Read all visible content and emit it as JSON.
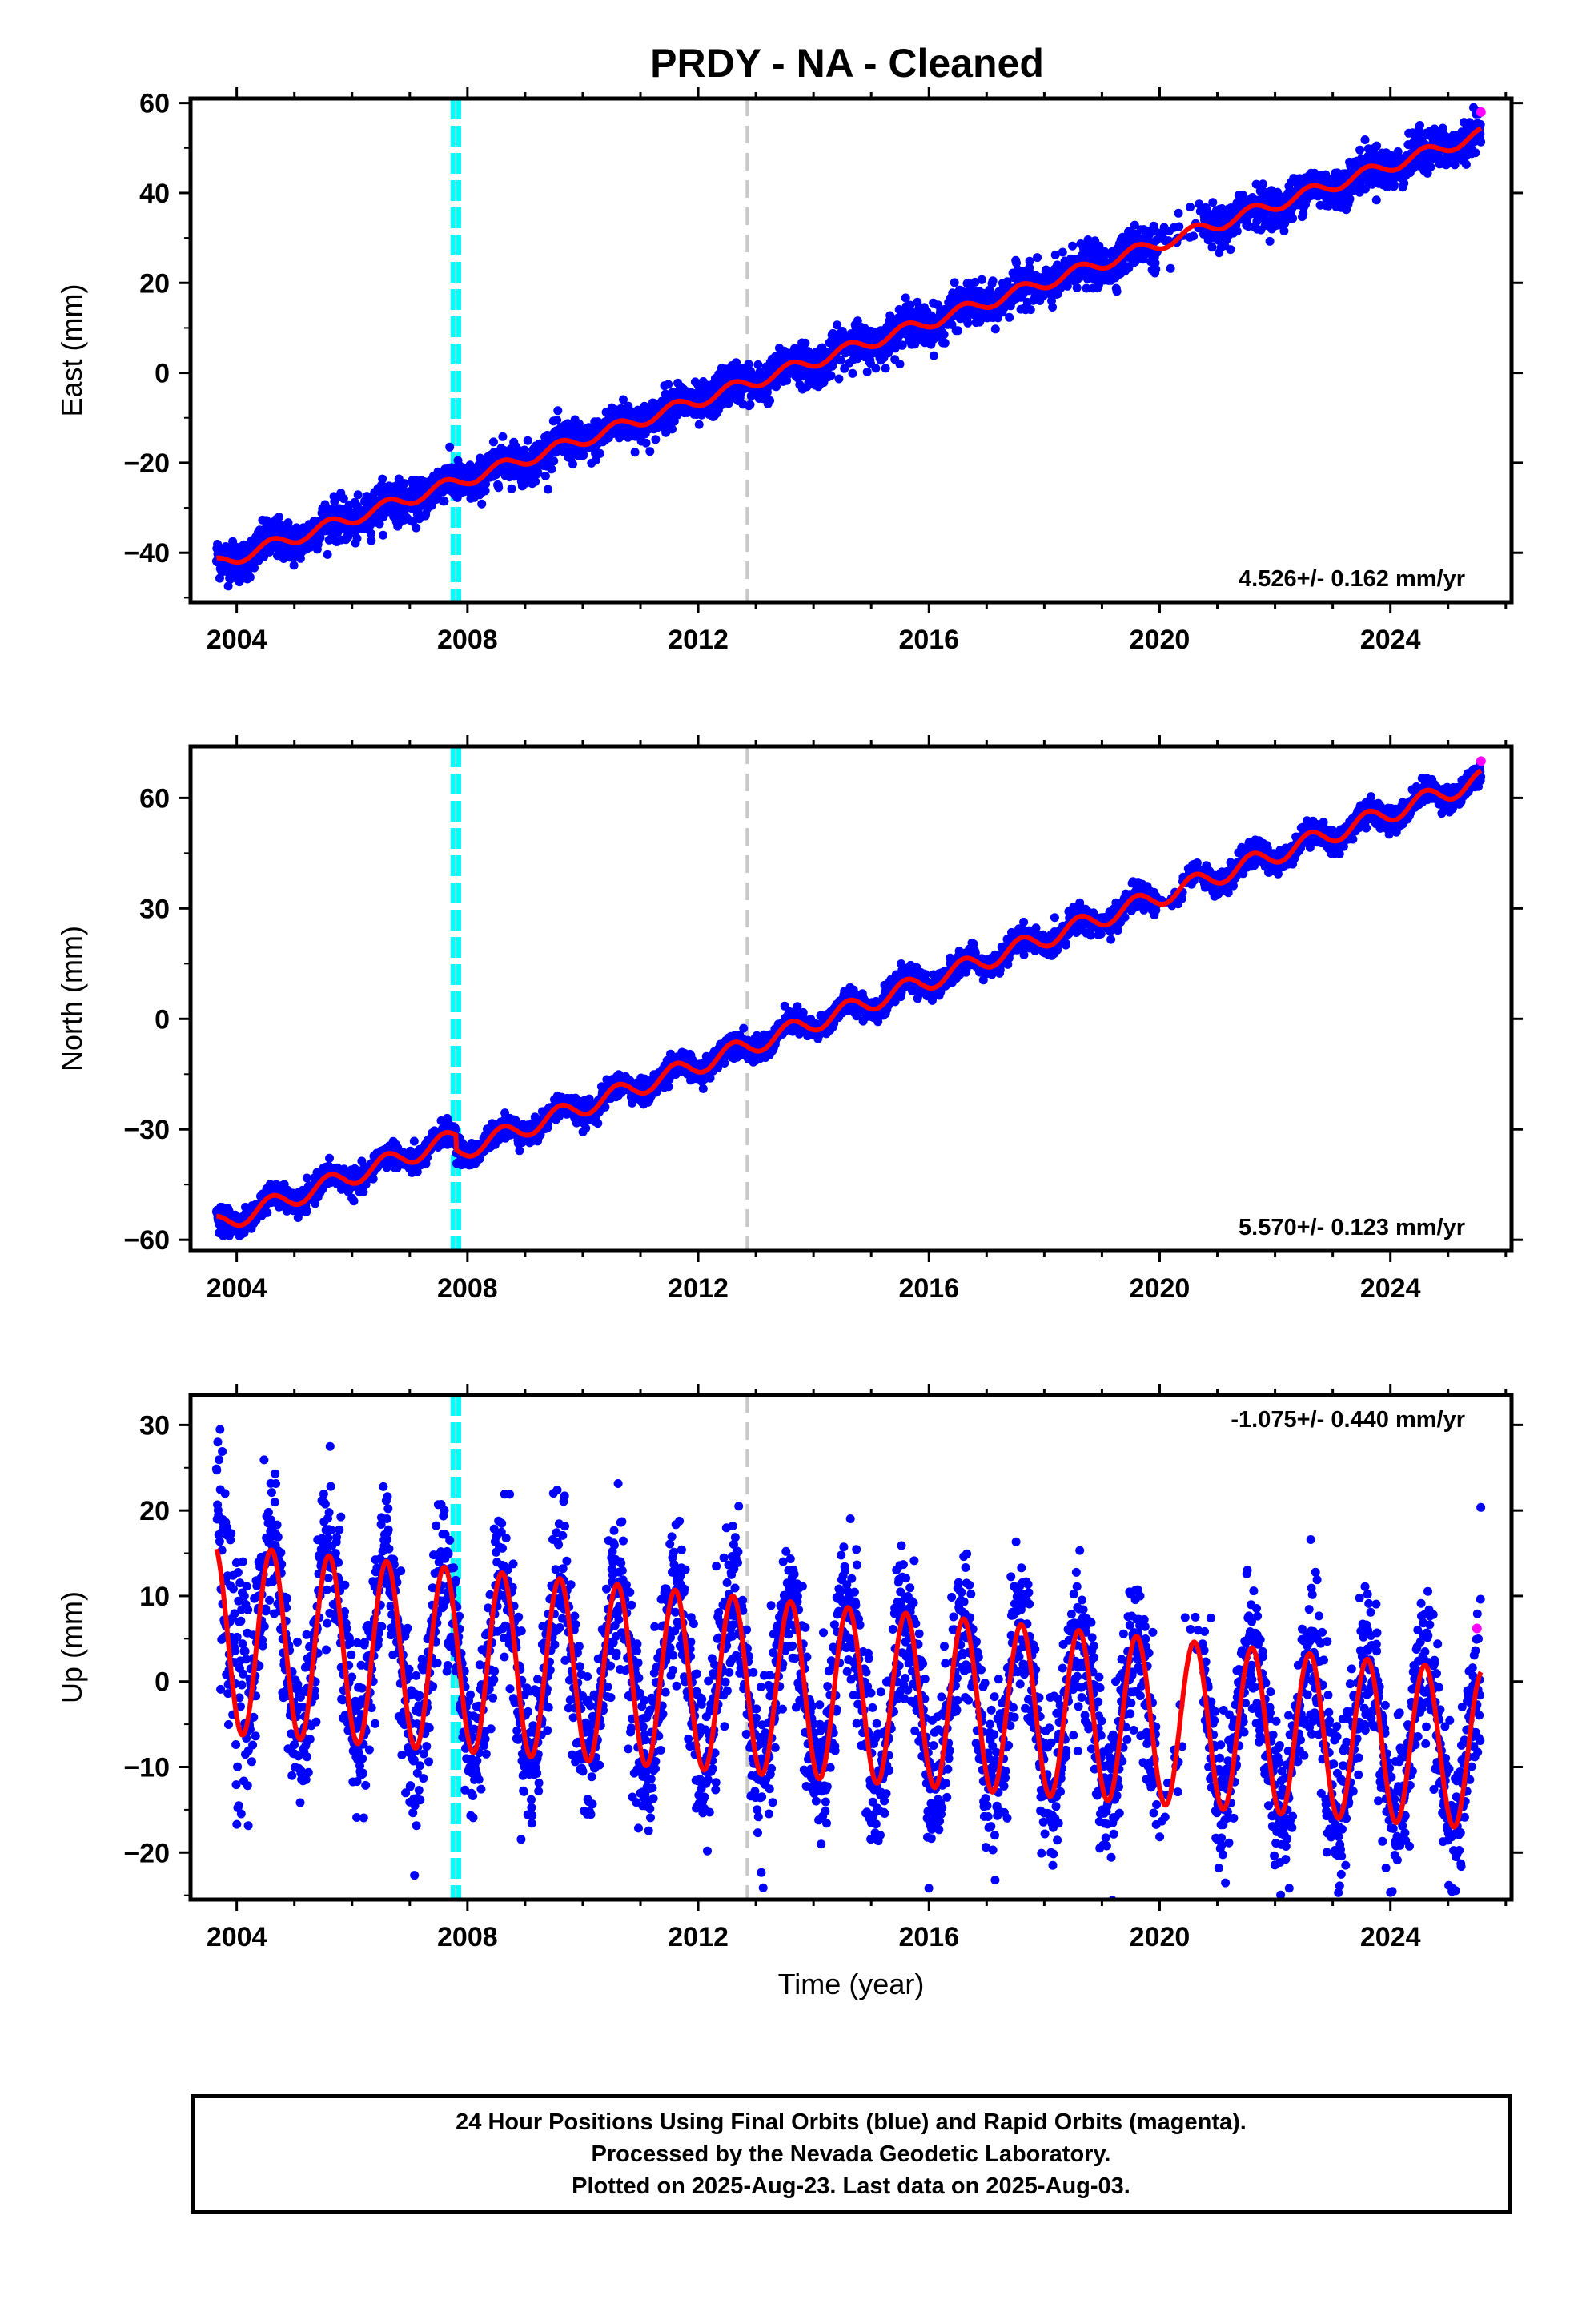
{
  "title": "PRDY  - NA - Cleaned",
  "colors": {
    "final_orbits": "#0000ff",
    "rapid_orbits": "#ff00ff",
    "model": "#ff0000",
    "antenna_change": "#00ffff",
    "earthquake": "#c8c8c8"
  },
  "footer": {
    "line1": "24 Hour Positions Using Final Orbits (blue) and Rapid Orbits (magenta).",
    "line2": "Processed by the Nevada Geodetic Laboratory.",
    "line3": "Plotted on 2025-Aug-23. Last data on 2025-Aug-03."
  },
  "chart_data": [
    {
      "type": "scatter",
      "component": "east",
      "ylabel": "East (mm)",
      "xlabel": "",
      "xlim": [
        2003.2,
        2026.1
      ],
      "ylim": [
        -51,
        61
      ],
      "x_ticks": [
        2004,
        2008,
        2012,
        2016,
        2020,
        2024
      ],
      "y_ticks": [
        -40,
        -20,
        0,
        20,
        40,
        60
      ],
      "y_tick_labels": [
        "−40",
        "−20",
        "0",
        "20",
        "40",
        "60"
      ],
      "rate_label": "4.526+/- 0.162 mm/yr",
      "rate_position": "bottom-right",
      "start_year": 2003.65,
      "end_year": 2025.57,
      "model": {
        "start_value": -42.5,
        "end_value": 53,
        "seasonal_amplitude": 1.4,
        "offset_2007_8": 0,
        "offset_2020_8": 0
      },
      "scatter_spread": 2.2,
      "rapid_points": [
        {
          "x": 2025.57,
          "y": 58
        }
      ],
      "vertical_lines": [
        {
          "x": 2007.75,
          "kind": "antenna_change"
        },
        {
          "x": 2007.85,
          "kind": "antenna_change"
        },
        {
          "x": 2012.85,
          "kind": "earthquake"
        }
      ]
    },
    {
      "type": "scatter",
      "component": "north",
      "ylabel": "North (mm)",
      "xlabel": "",
      "xlim": [
        2003.2,
        2026.1
      ],
      "ylim": [
        -63,
        74
      ],
      "x_ticks": [
        2004,
        2008,
        2012,
        2016,
        2020,
        2024
      ],
      "y_ticks": [
        -60,
        -30,
        0,
        30,
        60
      ],
      "y_tick_labels": [
        "−60",
        "−30",
        "0",
        "30",
        "60"
      ],
      "rate_label": "5.570+/- 0.123 mm/yr",
      "rate_position": "bottom-right",
      "start_year": 2003.65,
      "end_year": 2025.57,
      "model": {
        "start_value": -56,
        "end_value": 69,
        "seasonal_amplitude": 2.5,
        "offset_2007_8": -4,
        "offset_2020_8": 0
      },
      "scatter_spread": 1.6,
      "rapid_points": [
        {
          "x": 2025.57,
          "y": 70
        }
      ],
      "vertical_lines": [
        {
          "x": 2007.75,
          "kind": "antenna_change"
        },
        {
          "x": 2007.85,
          "kind": "antenna_change"
        },
        {
          "x": 2012.85,
          "kind": "earthquake"
        }
      ]
    },
    {
      "type": "scatter",
      "component": "up",
      "ylabel": "Up (mm)",
      "xlabel": "Time (year)",
      "xlim": [
        2003.2,
        2026.1
      ],
      "ylim": [
        -25.5,
        33.5
      ],
      "x_ticks": [
        2004,
        2008,
        2012,
        2016,
        2020,
        2024
      ],
      "y_ticks": [
        -20,
        -10,
        0,
        10,
        20,
        30
      ],
      "y_tick_labels": [
        "−20",
        "−10",
        "0",
        "10",
        "20",
        "30"
      ],
      "rate_label": "-1.075+/- 0.440 mm/yr",
      "rate_position": "top-right",
      "start_year": 2003.65,
      "end_year": 2025.57,
      "model": {
        "start_value": 5,
        "end_value": -8,
        "seasonal_amplitude": 7,
        "offset_2007_8": 0,
        "offset_2020_8": 0
      },
      "scatter_spread": 4.5,
      "rapid_points": [
        {
          "x": 2025.5,
          "y": 6.2
        }
      ],
      "vertical_lines": [
        {
          "x": 2007.75,
          "kind": "antenna_change"
        },
        {
          "x": 2007.85,
          "kind": "antenna_change"
        },
        {
          "x": 2012.85,
          "kind": "earthquake"
        }
      ]
    }
  ]
}
